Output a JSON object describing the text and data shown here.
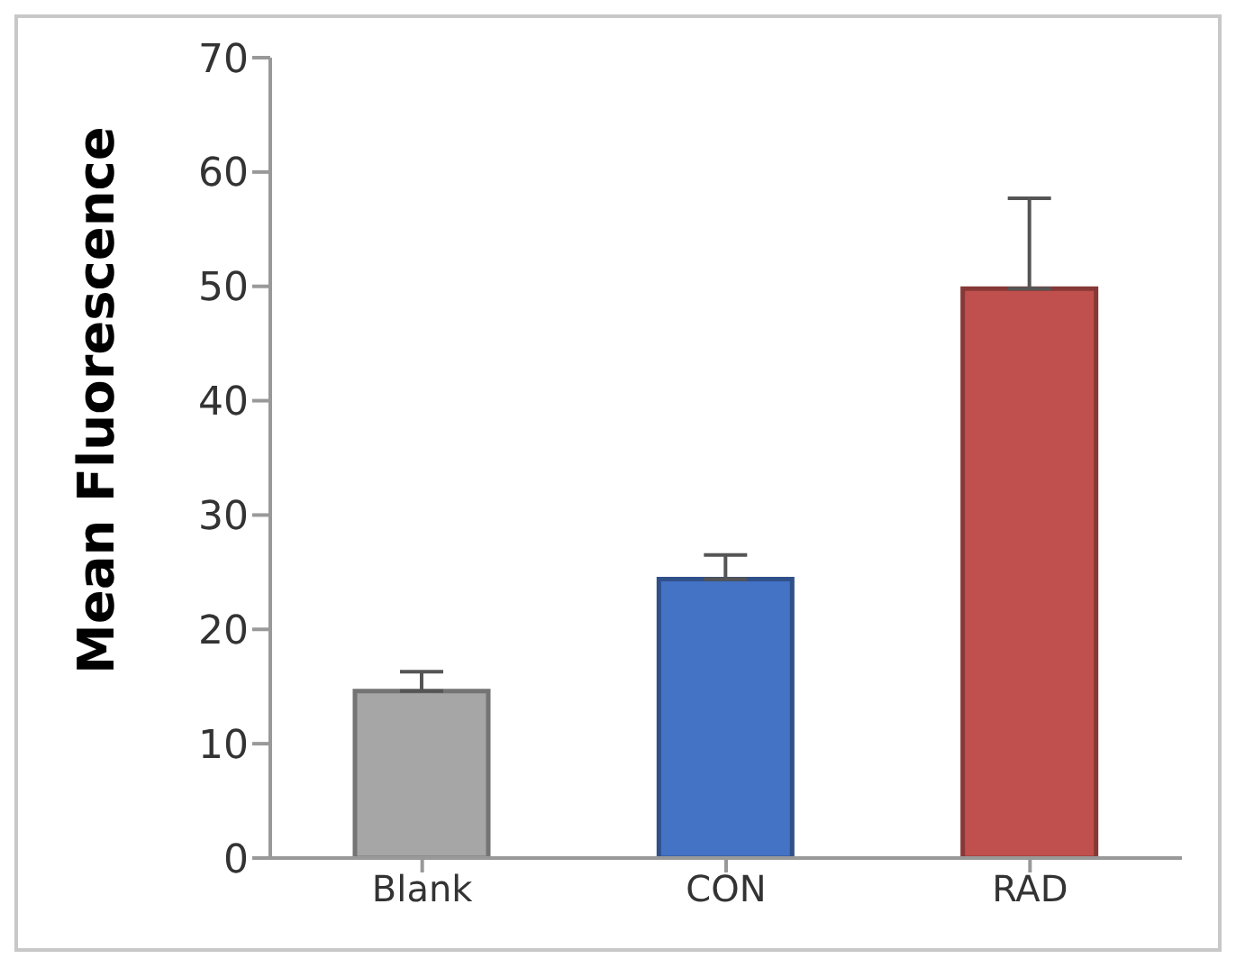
{
  "chart_data": {
    "type": "bar",
    "ylabel": "Mean Fluorescence",
    "categories": [
      "Blank",
      "CON",
      "RAD"
    ],
    "values": [
      14.6,
      24.4,
      49.8
    ],
    "colors": [
      "#a6a6a6",
      "#4472c4",
      "#c0504d"
    ],
    "errors": [
      [
        14.6,
        16.3
      ],
      [
        24.4,
        26.5
      ],
      [
        49.8,
        57.7
      ]
    ],
    "ylim": [
      0,
      70
    ],
    "yticks": [
      0,
      10,
      20,
      30,
      40,
      50,
      60,
      70
    ],
    "grid": false,
    "legend": false
  }
}
